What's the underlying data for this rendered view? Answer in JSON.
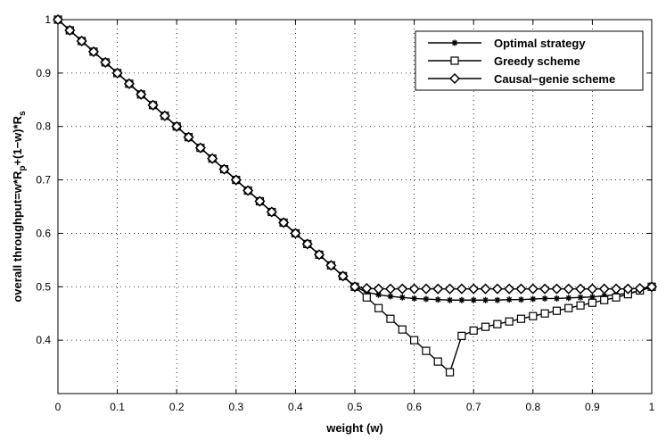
{
  "chart_data": {
    "type": "line",
    "title": "",
    "xlabel": "weight (w)",
    "ylabel": {
      "base": "overall throughput=w*R",
      "sub1": "p",
      "mid": "+(1−w)*R",
      "sub2": "s"
    },
    "xlim": [
      0,
      1
    ],
    "ylim": [
      0.3,
      1.0
    ],
    "x_ticks": [
      0,
      0.1,
      0.2,
      0.3,
      0.4,
      0.5,
      0.6,
      0.7,
      0.8,
      0.9,
      1
    ],
    "x_tick_labels": [
      "0",
      "0.1",
      "0.2",
      "0.3",
      "0.4",
      "0.5",
      "0.6",
      "0.7",
      "0.8",
      "0.9",
      "1"
    ],
    "y_ticks": [
      0.4,
      0.5,
      0.6,
      0.7,
      0.8,
      0.9,
      1.0
    ],
    "y_tick_labels": [
      "0.4",
      "0.5",
      "0.6",
      "0.7",
      "0.8",
      "0.9",
      "1"
    ],
    "grid": true,
    "legend_position": "top-right",
    "x": [
      0,
      0.02,
      0.04,
      0.06,
      0.08,
      0.1,
      0.12,
      0.14,
      0.16,
      0.18,
      0.2,
      0.22,
      0.24,
      0.26,
      0.28,
      0.3,
      0.32,
      0.34,
      0.36,
      0.38,
      0.4,
      0.42,
      0.44,
      0.46,
      0.48,
      0.5,
      0.52,
      0.54,
      0.56,
      0.58,
      0.6,
      0.62,
      0.64,
      0.66,
      0.68,
      0.7,
      0.72,
      0.74,
      0.76,
      0.78,
      0.8,
      0.82,
      0.84,
      0.86,
      0.88,
      0.9,
      0.92,
      0.94,
      0.96,
      0.98,
      1.0
    ],
    "series": [
      {
        "name": "Optimal strategy",
        "marker": "asterisk",
        "values": [
          1.0,
          0.98,
          0.96,
          0.94,
          0.92,
          0.9,
          0.88,
          0.86,
          0.84,
          0.82,
          0.8,
          0.78,
          0.76,
          0.74,
          0.72,
          0.7,
          0.68,
          0.66,
          0.64,
          0.62,
          0.6,
          0.58,
          0.56,
          0.54,
          0.52,
          0.5,
          0.49,
          0.485,
          0.482,
          0.48,
          0.478,
          0.477,
          0.476,
          0.475,
          0.475,
          0.475,
          0.475,
          0.475,
          0.476,
          0.476,
          0.477,
          0.478,
          0.478,
          0.479,
          0.48,
          0.481,
          0.483,
          0.485,
          0.488,
          0.492,
          0.5
        ]
      },
      {
        "name": "Greedy scheme",
        "marker": "square",
        "values": [
          1.0,
          0.98,
          0.96,
          0.94,
          0.92,
          0.9,
          0.88,
          0.86,
          0.84,
          0.82,
          0.8,
          0.78,
          0.76,
          0.74,
          0.72,
          0.7,
          0.68,
          0.66,
          0.64,
          0.62,
          0.6,
          0.58,
          0.56,
          0.54,
          0.52,
          0.5,
          0.48,
          0.46,
          0.44,
          0.42,
          0.4,
          0.38,
          0.36,
          0.34,
          0.408,
          0.418,
          0.425,
          0.43,
          0.435,
          0.44,
          0.445,
          0.45,
          0.455,
          0.46,
          0.465,
          0.47,
          0.475,
          0.48,
          0.486,
          0.493,
          0.5
        ]
      },
      {
        "name": "Causal−genie scheme",
        "marker": "diamond",
        "values": [
          1.0,
          0.98,
          0.96,
          0.94,
          0.92,
          0.9,
          0.88,
          0.86,
          0.84,
          0.82,
          0.8,
          0.78,
          0.76,
          0.74,
          0.72,
          0.7,
          0.68,
          0.66,
          0.64,
          0.62,
          0.6,
          0.58,
          0.56,
          0.54,
          0.52,
          0.5,
          0.497,
          0.496,
          0.496,
          0.496,
          0.496,
          0.496,
          0.496,
          0.496,
          0.496,
          0.496,
          0.496,
          0.496,
          0.496,
          0.496,
          0.496,
          0.496,
          0.496,
          0.496,
          0.496,
          0.496,
          0.496,
          0.496,
          0.496,
          0.497,
          0.5
        ]
      }
    ]
  }
}
